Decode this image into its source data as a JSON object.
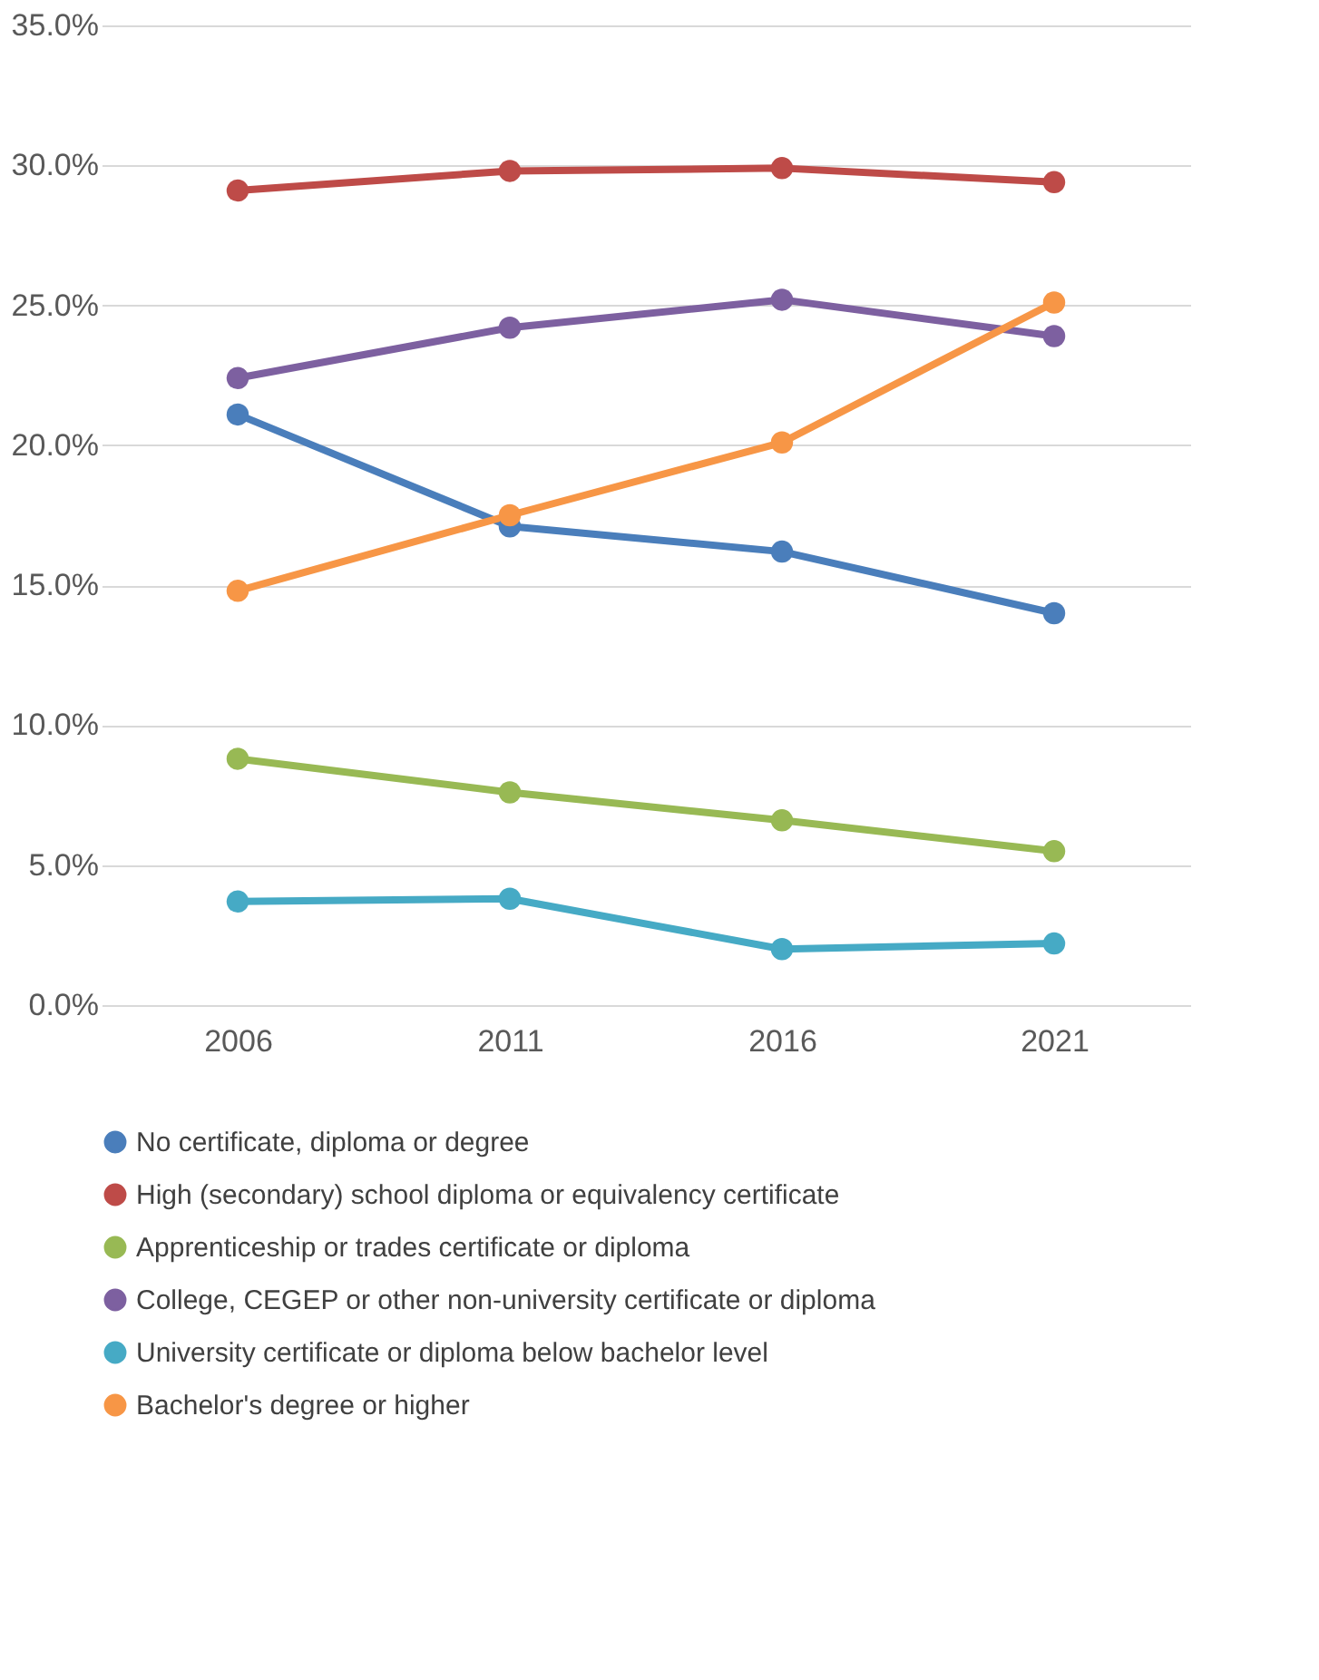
{
  "chart_data": {
    "type": "line",
    "categories": [
      "2006",
      "2011",
      "2016",
      "2021"
    ],
    "series": [
      {
        "name": "No certificate, diploma or degree",
        "color": "#4a7ebb",
        "values": [
          21.1,
          17.1,
          16.2,
          14.0
        ]
      },
      {
        "name": "High (secondary) school diploma or equivalency certificate",
        "color": "#be4b48",
        "values": [
          29.1,
          29.8,
          29.9,
          29.4
        ]
      },
      {
        "name": "Apprenticeship or trades certificate or diploma",
        "color": "#98b954",
        "values": [
          8.8,
          7.6,
          6.6,
          5.5
        ]
      },
      {
        "name": "College, CEGEP or other non-university certificate or diploma",
        "color": "#7d60a0",
        "values": [
          22.4,
          24.2,
          25.2,
          23.9
        ]
      },
      {
        "name": "University certificate or diploma below bachelor level",
        "color": "#46aac5",
        "values": [
          3.7,
          3.8,
          2.0,
          2.2
        ]
      },
      {
        "name": "Bachelor's degree or higher",
        "color": "#f79646",
        "values": [
          14.8,
          17.5,
          20.1,
          25.1
        ]
      }
    ],
    "ylim": [
      0,
      35
    ],
    "yticks": [
      {
        "value": 0,
        "label": "0.0%"
      },
      {
        "value": 5,
        "label": "5.0%"
      },
      {
        "value": 10,
        "label": "10.0%"
      },
      {
        "value": 15,
        "label": "15.0%"
      },
      {
        "value": 20,
        "label": "20.0%"
      },
      {
        "value": 25,
        "label": "25.0%"
      },
      {
        "value": 30,
        "label": "30.0%"
      },
      {
        "value": 35,
        "label": "35.0%"
      }
    ],
    "grid": "y",
    "legend": "bottom",
    "marker": "circle",
    "line_style": "solid"
  }
}
